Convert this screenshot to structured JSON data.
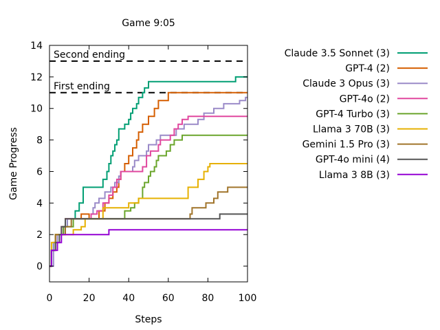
{
  "chart_data": {
    "type": "line",
    "title": "Game 9:05",
    "xlabel": "Steps",
    "ylabel": "Game Progress",
    "xlim": [
      0,
      100
    ],
    "ylim": [
      -1,
      14
    ],
    "xticks": [
      0,
      20,
      40,
      60,
      80,
      100
    ],
    "yticks": [
      0,
      2,
      4,
      6,
      8,
      10,
      12,
      14
    ],
    "grid": false,
    "legend_position": "right",
    "reference_lines": [
      {
        "label": "Second ending",
        "y": 13
      },
      {
        "label": "First ending",
        "y": 11
      }
    ],
    "series": [
      {
        "name": "Claude 3.5 Sonnet (3)",
        "color": "#009e73",
        "points": [
          [
            0,
            0
          ],
          [
            1,
            1
          ],
          [
            2,
            1.5
          ],
          [
            3,
            2
          ],
          [
            5,
            2
          ],
          [
            7,
            2.5
          ],
          [
            9,
            3
          ],
          [
            11,
            3
          ],
          [
            13,
            3.5
          ],
          [
            15,
            4
          ],
          [
            17,
            5
          ],
          [
            26,
            5
          ],
          [
            27,
            5.5
          ],
          [
            29,
            6
          ],
          [
            30,
            6.5
          ],
          [
            31,
            7
          ],
          [
            32,
            7.3
          ],
          [
            33,
            7.7
          ],
          [
            34,
            8
          ],
          [
            35,
            8.7
          ],
          [
            37,
            8.7
          ],
          [
            38,
            9
          ],
          [
            40,
            9.3
          ],
          [
            41,
            9.7
          ],
          [
            42,
            10
          ],
          [
            44,
            10.3
          ],
          [
            45,
            10.7
          ],
          [
            46,
            10.7
          ],
          [
            47,
            11
          ],
          [
            48,
            11.3
          ],
          [
            50,
            11.7
          ],
          [
            52,
            11.7
          ],
          [
            93,
            11.7
          ],
          [
            94,
            12
          ],
          [
            100,
            12
          ]
        ]
      },
      {
        "name": "GPT-4 (2)",
        "color": "#d55e00",
        "points": [
          [
            0,
            0
          ],
          [
            1,
            1
          ],
          [
            3,
            2
          ],
          [
            5,
            2
          ],
          [
            7,
            2.5
          ],
          [
            8,
            3
          ],
          [
            11,
            3
          ],
          [
            14,
            3
          ],
          [
            16,
            3.3
          ],
          [
            20,
            3
          ],
          [
            25,
            3.5
          ],
          [
            28,
            4
          ],
          [
            30,
            4.3
          ],
          [
            32,
            4.7
          ],
          [
            34,
            5
          ],
          [
            35,
            5.5
          ],
          [
            36,
            6
          ],
          [
            37,
            6
          ],
          [
            38,
            6.5
          ],
          [
            40,
            7
          ],
          [
            42,
            7.5
          ],
          [
            44,
            8
          ],
          [
            45,
            8.5
          ],
          [
            47,
            9
          ],
          [
            49,
            9
          ],
          [
            50,
            9.5
          ],
          [
            52,
            9.5
          ],
          [
            53,
            10
          ],
          [
            55,
            10.5
          ],
          [
            59,
            10.5
          ],
          [
            60,
            11
          ],
          [
            62,
            11
          ],
          [
            100,
            11
          ]
        ]
      },
      {
        "name": "Claude 3 Opus (3)",
        "color": "#9a8ac8",
        "points": [
          [
            0,
            0
          ],
          [
            2,
            1.5
          ],
          [
            4,
            2
          ],
          [
            6,
            2
          ],
          [
            7,
            2.5
          ],
          [
            9,
            3
          ],
          [
            19,
            3
          ],
          [
            21,
            3.3
          ],
          [
            22,
            3.7
          ],
          [
            23,
            4
          ],
          [
            25,
            4.3
          ],
          [
            28,
            4.7
          ],
          [
            31,
            5
          ],
          [
            33,
            5.3
          ],
          [
            35,
            5.7
          ],
          [
            36,
            6
          ],
          [
            40,
            6
          ],
          [
            42,
            6.3
          ],
          [
            43,
            6.7
          ],
          [
            45,
            7
          ],
          [
            47,
            7
          ],
          [
            49,
            7.3
          ],
          [
            50,
            7.7
          ],
          [
            52,
            7.7
          ],
          [
            54,
            8
          ],
          [
            56,
            8.3
          ],
          [
            62,
            8.3
          ],
          [
            64,
            8.7
          ],
          [
            66,
            8.7
          ],
          [
            68,
            9
          ],
          [
            73,
            9
          ],
          [
            75,
            9.3
          ],
          [
            77,
            9.3
          ],
          [
            78,
            9.7
          ],
          [
            81,
            9.7
          ],
          [
            83,
            10
          ],
          [
            86,
            10
          ],
          [
            88,
            10.3
          ],
          [
            94,
            10.3
          ],
          [
            96,
            10.5
          ],
          [
            99,
            10.7
          ],
          [
            100,
            10.7
          ]
        ]
      },
      {
        "name": "GPT-4o (2)",
        "color": "#e0479e",
        "points": [
          [
            0,
            0
          ],
          [
            1,
            1
          ],
          [
            3,
            2
          ],
          [
            5,
            2
          ],
          [
            6,
            2.5
          ],
          [
            8,
            3
          ],
          [
            9,
            3
          ],
          [
            13,
            3
          ],
          [
            15,
            3
          ],
          [
            19,
            3
          ],
          [
            21,
            3.3
          ],
          [
            24,
            3.5
          ],
          [
            27,
            4
          ],
          [
            30,
            4.5
          ],
          [
            32,
            5
          ],
          [
            34,
            5.5
          ],
          [
            36,
            6
          ],
          [
            45,
            6
          ],
          [
            47,
            6.3
          ],
          [
            49,
            7
          ],
          [
            51,
            7.3
          ],
          [
            55,
            7.7
          ],
          [
            56,
            8
          ],
          [
            59,
            8
          ],
          [
            61,
            8.3
          ],
          [
            63,
            8.7
          ],
          [
            65,
            9
          ],
          [
            67,
            9.3
          ],
          [
            70,
            9.5
          ],
          [
            100,
            9.5
          ]
        ]
      },
      {
        "name": "GPT-4 Turbo (3)",
        "color": "#6aa52b",
        "points": [
          [
            0,
            0
          ],
          [
            1,
            1
          ],
          [
            3,
            2
          ],
          [
            5,
            2
          ],
          [
            6,
            2
          ],
          [
            7,
            2.5
          ],
          [
            9,
            2.5
          ],
          [
            12,
            3
          ],
          [
            37,
            3
          ],
          [
            38,
            3.5
          ],
          [
            41,
            3.7
          ],
          [
            43,
            4
          ],
          [
            45,
            4.3
          ],
          [
            47,
            5
          ],
          [
            48,
            5.3
          ],
          [
            50,
            5.7
          ],
          [
            51,
            6
          ],
          [
            53,
            6.3
          ],
          [
            54,
            6.7
          ],
          [
            55,
            7
          ],
          [
            59,
            7.3
          ],
          [
            61,
            7.7
          ],
          [
            63,
            8
          ],
          [
            65,
            8
          ],
          [
            67,
            8.3
          ],
          [
            100,
            8.3
          ]
        ]
      },
      {
        "name": "Llama 3 70B (3)",
        "color": "#e6b000",
        "points": [
          [
            0,
            0
          ],
          [
            1,
            1.5
          ],
          [
            3,
            2
          ],
          [
            9,
            2
          ],
          [
            12,
            2.3
          ],
          [
            16,
            2.5
          ],
          [
            18,
            3
          ],
          [
            26,
            3
          ],
          [
            27,
            3.7
          ],
          [
            35,
            3.7
          ],
          [
            38,
            3.7
          ],
          [
            40,
            4
          ],
          [
            43,
            4
          ],
          [
            45,
            4.3
          ],
          [
            47,
            4.3
          ],
          [
            68,
            4.3
          ],
          [
            70,
            5
          ],
          [
            74,
            5
          ],
          [
            75,
            5.5
          ],
          [
            78,
            6
          ],
          [
            80,
            6.3
          ],
          [
            81,
            6.5
          ],
          [
            100,
            6.5
          ]
        ]
      },
      {
        "name": "Gemini 1.5 Pro (3)",
        "color": "#a0742a",
        "points": [
          [
            0,
            0
          ],
          [
            1,
            1
          ],
          [
            3,
            2
          ],
          [
            6,
            2
          ],
          [
            8,
            2.5
          ],
          [
            11,
            3
          ],
          [
            70,
            3
          ],
          [
            71,
            3.3
          ],
          [
            72,
            3.7
          ],
          [
            78,
            3.7
          ],
          [
            79,
            4
          ],
          [
            81,
            4
          ],
          [
            83,
            4.3
          ],
          [
            85,
            4.7
          ],
          [
            88,
            4.7
          ],
          [
            90,
            5
          ],
          [
            100,
            5
          ]
        ]
      },
      {
        "name": "GPT-4o mini (4)",
        "color": "#555555",
        "points": [
          [
            0,
            0
          ],
          [
            1,
            1
          ],
          [
            3,
            1.5
          ],
          [
            5,
            2
          ],
          [
            6,
            2.5
          ],
          [
            8,
            3
          ],
          [
            85,
            3
          ],
          [
            86,
            3.3
          ],
          [
            100,
            3.3
          ]
        ]
      },
      {
        "name": "Llama 3 8B (3)",
        "color": "#9400d3",
        "points": [
          [
            0,
            0
          ],
          [
            1,
            1
          ],
          [
            4,
            1.5
          ],
          [
            6,
            2
          ],
          [
            29,
            2
          ],
          [
            30,
            2.3
          ],
          [
            100,
            2.3
          ]
        ]
      }
    ]
  }
}
